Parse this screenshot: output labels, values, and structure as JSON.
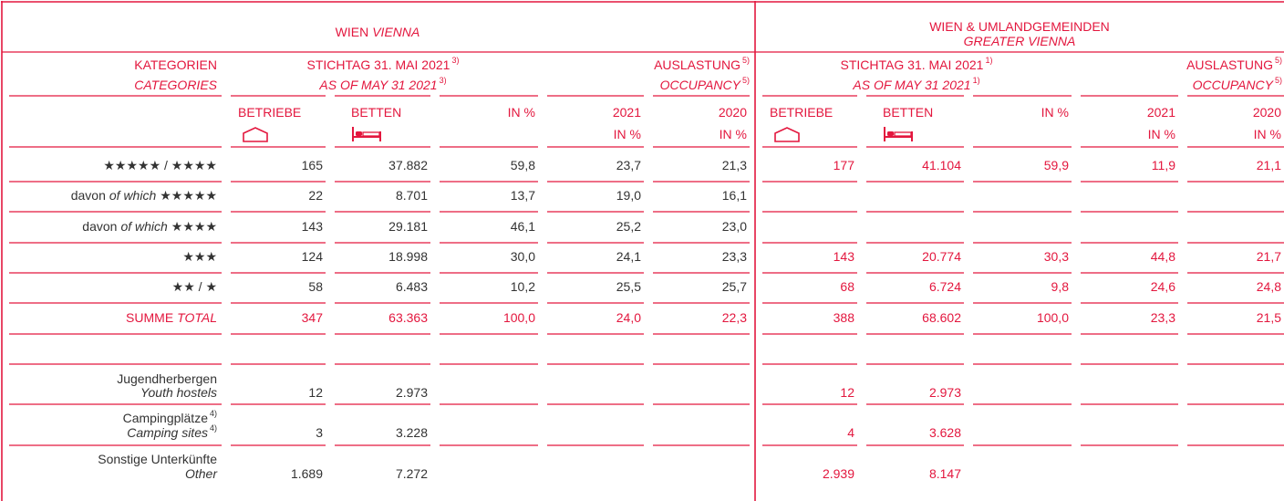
{
  "header": {
    "vienna": {
      "de": "WIEN",
      "en": "VIENNA"
    },
    "greater": {
      "de": "WIEN & UMLANDGEMEINDEN",
      "en": "GREATER VIENNA"
    }
  },
  "subheader": {
    "categories": {
      "de": "KATEGORIEN",
      "en": "CATEGORIES"
    },
    "vienna_stock": {
      "de": "STICHTAG 31. MAI 2021",
      "en": "AS OF MAY 31 2021",
      "note": "3)"
    },
    "vienna_occupancy": {
      "de": "AUSLASTUNG",
      "en": "OCCUPANCY",
      "note": "5)"
    },
    "greater_stock": {
      "de": "STICHTAG 31. MAI 2021",
      "en": "AS OF MAY 31 2021",
      "note": "1)"
    },
    "greater_occupancy": {
      "de": "AUSLASTUNG",
      "en": "OCCUPANCY",
      "note": "5)"
    }
  },
  "columns": [
    [
      {
        "top": "BETRIEBE"
      },
      {
        "top": "BETTEN"
      },
      {
        "top": "IN %"
      },
      {
        "top": "2021",
        "bottom": "IN %"
      },
      {
        "top": "2020",
        "bottom": "IN %"
      }
    ],
    [
      {
        "top": "BETRIEBE"
      },
      {
        "top": "BETTEN"
      },
      {
        "top": "IN %"
      },
      {
        "top": "2021",
        "bottom": "IN %"
      },
      {
        "top": "2020",
        "bottom": "IN %"
      }
    ]
  ],
  "rows": [
    {
      "label": [
        [
          {
            "text": "★★★★★ / ★★★★"
          }
        ]
      ],
      "values": [
        "165",
        "37.882",
        "59,8",
        "23,7",
        "21,3",
        "177",
        "41.104",
        "59,9",
        "11,9",
        "21,1"
      ]
    },
    {
      "label": [
        [
          {
            "text": "davon"
          },
          {
            "text": "of which",
            "italic": true
          },
          {
            "text": "★★★★★"
          }
        ]
      ],
      "values": [
        "22",
        "8.701",
        "13,7",
        "19,0",
        "16,1",
        null,
        null,
        null,
        null,
        null
      ]
    },
    {
      "label": [
        [
          {
            "text": "davon"
          },
          {
            "text": "of which",
            "italic": true
          },
          {
            "text": "★★★★"
          }
        ]
      ],
      "values": [
        "143",
        "29.181",
        "46,1",
        "25,2",
        "23,0",
        null,
        null,
        null,
        null,
        null
      ]
    },
    {
      "label": [
        [
          {
            "text": "★★★"
          }
        ]
      ],
      "values": [
        "124",
        "18.998",
        "30,0",
        "24,1",
        "23,3",
        "143",
        "20.774",
        "30,3",
        "44,8",
        "21,7"
      ]
    },
    {
      "label": [
        [
          {
            "text": "★★ / ★"
          }
        ]
      ],
      "values": [
        "58",
        "6.483",
        "10,2",
        "25,5",
        "25,7",
        "68",
        "6.724",
        "9,8",
        "24,6",
        "24,8"
      ]
    },
    {
      "label": [
        [
          {
            "text": "SUMME"
          },
          {
            "text": "TOTAL",
            "italic": true
          }
        ]
      ],
      "total": true,
      "values": [
        "347",
        "63.363",
        "100,0",
        "24,0",
        "22,3",
        "388",
        "68.602",
        "100,0",
        "23,3",
        "21,5"
      ]
    },
    {
      "label": [
        [
          {
            "text": "Jugendherbergen"
          }
        ],
        [
          {
            "text": "Youth hostels",
            "italic": true
          }
        ]
      ],
      "values": [
        "12",
        "2.973",
        null,
        null,
        null,
        "12",
        "2.973",
        null,
        null,
        null
      ]
    },
    {
      "label": [
        [
          {
            "text": "Campingplätze"
          },
          {
            "text": "4)",
            "sup": true
          }
        ],
        [
          {
            "text": "Camping sites",
            "italic": true
          },
          {
            "text": "4)",
            "sup": true
          }
        ]
      ],
      "values": [
        "3",
        "3.228",
        null,
        null,
        null,
        "4",
        "3.628",
        null,
        null,
        null
      ]
    },
    {
      "label": [
        [
          {
            "text": "Sonstige Unterkünfte"
          }
        ],
        [
          {
            "text": "Other",
            "italic": true
          }
        ]
      ],
      "values": [
        "1.689",
        "7.272",
        null,
        null,
        null,
        "2.939",
        "8.147",
        null,
        null,
        null
      ]
    }
  ]
}
